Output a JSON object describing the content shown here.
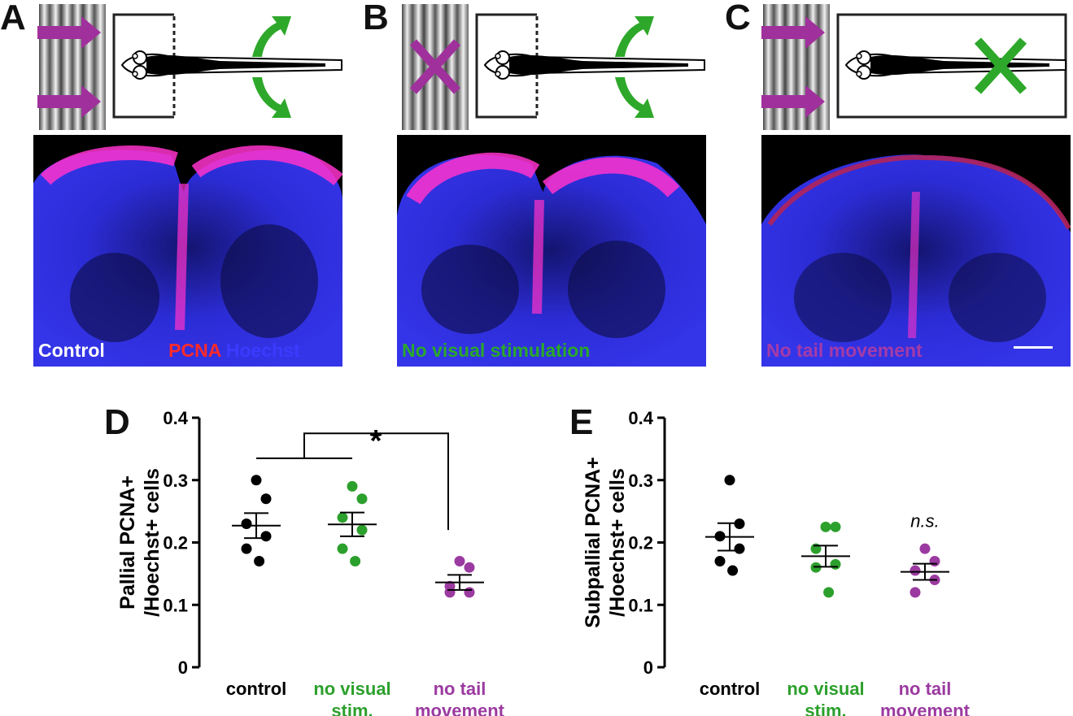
{
  "panels": {
    "A": {
      "letter": "A",
      "caption_parts": [
        "Control",
        " PCNA",
        " Hoechst"
      ],
      "caption_colors": [
        "#ffffff",
        "#ff2a2a",
        "#3b3bff"
      ]
    },
    "B": {
      "letter": "B",
      "caption": "No visual stimulation",
      "caption_color": "#2aa82a"
    },
    "C": {
      "letter": "C",
      "caption": "No tail movement",
      "caption_color": "#a43ba8"
    },
    "D": {
      "letter": "D"
    },
    "E": {
      "letter": "E"
    }
  },
  "colors": {
    "control": "#000000",
    "no_visual": "#2ca02c",
    "no_tail": "#9b3aa0",
    "arrow_magenta": "#a0309c",
    "arrow_green": "#2ea82a"
  },
  "icons": {
    "stimulus": "grating-stimulus",
    "arrow": "right-arrow-icon",
    "cross": "cross-icon",
    "curved_arrows": "tail-movement-arrows-icon",
    "larva": "zebrafish-larva-icon"
  },
  "chart_data": [
    {
      "type": "scatter",
      "panel": "D",
      "ylabel_lines": [
        "Pallial PCNA+",
        "/Hoechst+ cells"
      ],
      "ylim": [
        0,
        0.4
      ],
      "yticks": [
        0,
        0.1,
        0.2,
        0.3,
        0.4
      ],
      "ytick_labels": [
        "0",
        "0.1",
        "0.2",
        "0.3",
        "0.4"
      ],
      "categories": [
        {
          "lines": [
            "control"
          ],
          "color": "#000000"
        },
        {
          "lines": [
            "no visual",
            "stim."
          ],
          "color": "#2ca02c"
        },
        {
          "lines": [
            "no tail",
            "movement"
          ],
          "color": "#9b3aa0"
        }
      ],
      "series": [
        {
          "points": [
            0.3,
            0.27,
            0.23,
            0.21,
            0.19,
            0.17
          ],
          "mean": 0.227,
          "sem": 0.02
        },
        {
          "points": [
            0.29,
            0.27,
            0.24,
            0.22,
            0.19,
            0.17
          ],
          "mean": 0.229,
          "sem": 0.019
        },
        {
          "points": [
            0.17,
            0.16,
            0.13,
            0.12,
            0.12
          ],
          "mean": 0.136,
          "sem": 0.012
        }
      ],
      "annotation": "*"
    },
    {
      "type": "scatter",
      "panel": "E",
      "ylabel_lines": [
        "Subpallial PCNA+",
        "/Hoechst+ cells"
      ],
      "ylim": [
        0,
        0.4
      ],
      "yticks": [
        0,
        0.1,
        0.2,
        0.3,
        0.4
      ],
      "ytick_labels": [
        "0",
        "0.1",
        "0.2",
        "0.3",
        "0.4"
      ],
      "categories": [
        {
          "lines": [
            "control"
          ],
          "color": "#000000"
        },
        {
          "lines": [
            "no visual",
            "stim."
          ],
          "color": "#2ca02c"
        },
        {
          "lines": [
            "no tail",
            "movement"
          ],
          "color": "#9b3aa0"
        }
      ],
      "series": [
        {
          "points": [
            0.3,
            0.23,
            0.21,
            0.19,
            0.17,
            0.155
          ],
          "mean": 0.209,
          "sem": 0.022
        },
        {
          "points": [
            0.225,
            0.225,
            0.19,
            0.165,
            0.16,
            0.12
          ],
          "mean": 0.178,
          "sem": 0.017
        },
        {
          "points": [
            0.19,
            0.17,
            0.155,
            0.14,
            0.12
          ],
          "mean": 0.153,
          "sem": 0.013
        }
      ],
      "annotation": "n.s."
    }
  ]
}
